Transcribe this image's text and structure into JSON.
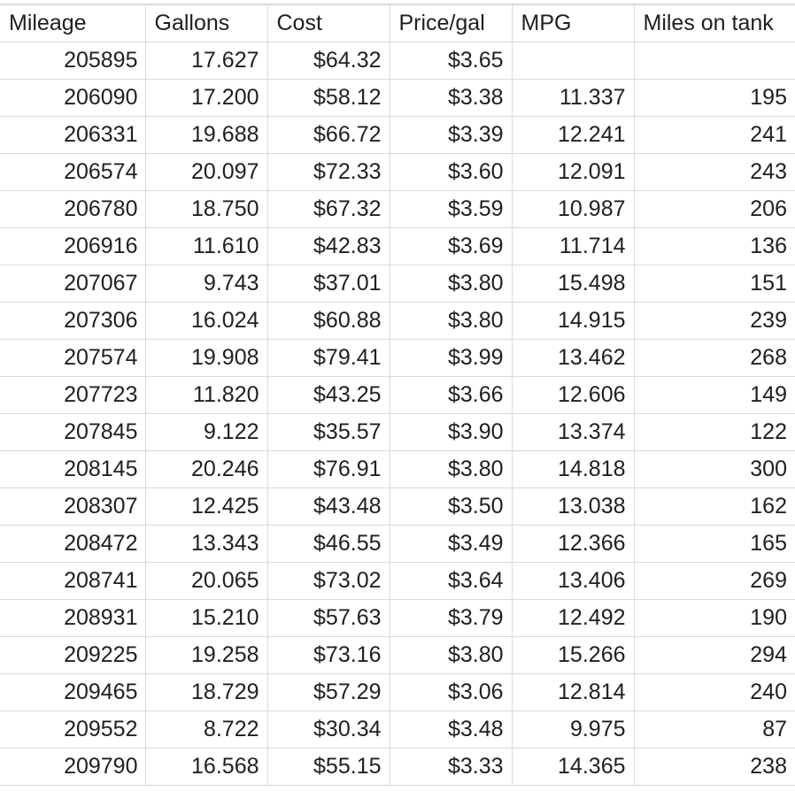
{
  "sheet": {
    "headers": [
      "Mileage",
      "Gallons",
      "Cost",
      "Price/gal",
      "MPG",
      "Miles on tank"
    ],
    "rows": [
      [
        "205895",
        "17.627",
        "$64.32",
        "$3.65",
        "",
        ""
      ],
      [
        "206090",
        "17.200",
        "$58.12",
        "$3.38",
        "11.337",
        "195"
      ],
      [
        "206331",
        "19.688",
        "$66.72",
        "$3.39",
        "12.241",
        "241"
      ],
      [
        "206574",
        "20.097",
        "$72.33",
        "$3.60",
        "12.091",
        "243"
      ],
      [
        "206780",
        "18.750",
        "$67.32",
        "$3.59",
        "10.987",
        "206"
      ],
      [
        "206916",
        "11.610",
        "$42.83",
        "$3.69",
        "11.714",
        "136"
      ],
      [
        "207067",
        "9.743",
        "$37.01",
        "$3.80",
        "15.498",
        "151"
      ],
      [
        "207306",
        "16.024",
        "$60.88",
        "$3.80",
        "14.915",
        "239"
      ],
      [
        "207574",
        "19.908",
        "$79.41",
        "$3.99",
        "13.462",
        "268"
      ],
      [
        "207723",
        "11.820",
        "$43.25",
        "$3.66",
        "12.606",
        "149"
      ],
      [
        "207845",
        "9.122",
        "$35.57",
        "$3.90",
        "13.374",
        "122"
      ],
      [
        "208145",
        "20.246",
        "$76.91",
        "$3.80",
        "14.818",
        "300"
      ],
      [
        "208307",
        "12.425",
        "$43.48",
        "$3.50",
        "13.038",
        "162"
      ],
      [
        "208472",
        "13.343",
        "$46.55",
        "$3.49",
        "12.366",
        "165"
      ],
      [
        "208741",
        "20.065",
        "$73.02",
        "$3.64",
        "13.406",
        "269"
      ],
      [
        "208931",
        "15.210",
        "$57.63",
        "$3.79",
        "12.492",
        "190"
      ],
      [
        "209225",
        "19.258",
        "$73.16",
        "$3.80",
        "15.266",
        "294"
      ],
      [
        "209465",
        "18.729",
        "$57.29",
        "$3.06",
        "12.814",
        "240"
      ],
      [
        "209552",
        "8.722",
        "$30.34",
        "$3.48",
        "9.975",
        "87"
      ],
      [
        "209790",
        "16.568",
        "$55.15",
        "$3.33",
        "14.365",
        "238"
      ]
    ]
  }
}
